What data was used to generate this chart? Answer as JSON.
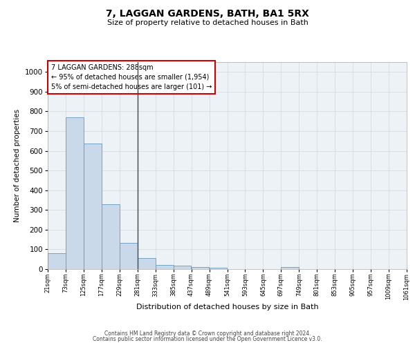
{
  "title1": "7, LAGGAN GARDENS, BATH, BA1 5RX",
  "title2": "Size of property relative to detached houses in Bath",
  "xlabel": "Distribution of detached houses by size in Bath",
  "ylabel": "Number of detached properties",
  "annotation_lines": [
    "7 LAGGAN GARDENS: 288sqm",
    "← 95% of detached houses are smaller (1,954)",
    "5% of semi-detached houses are larger (101) →"
  ],
  "bin_edges": [
    21,
    73,
    125,
    177,
    229,
    281,
    333,
    385,
    437,
    489,
    541,
    593,
    645,
    697,
    749,
    801,
    853,
    905,
    957,
    1009,
    1061
  ],
  "bar_heights": [
    82,
    770,
    638,
    328,
    132,
    57,
    22,
    17,
    12,
    7,
    0,
    0,
    0,
    10,
    0,
    0,
    0,
    0,
    0,
    0
  ],
  "bar_color": "#c9d9ea",
  "bar_edge_color": "#6699bb",
  "vline_color": "#444444",
  "vline_x": 281,
  "annotation_box_color": "#cc0000",
  "grid_color": "#d0d8e0",
  "background_color": "#edf2f7",
  "footer1": "Contains HM Land Registry data © Crown copyright and database right 2024.",
  "footer2": "Contains public sector information licensed under the Open Government Licence v3.0.",
  "ylim": [
    0,
    1050
  ],
  "yticks": [
    0,
    100,
    200,
    300,
    400,
    500,
    600,
    700,
    800,
    900,
    1000
  ]
}
